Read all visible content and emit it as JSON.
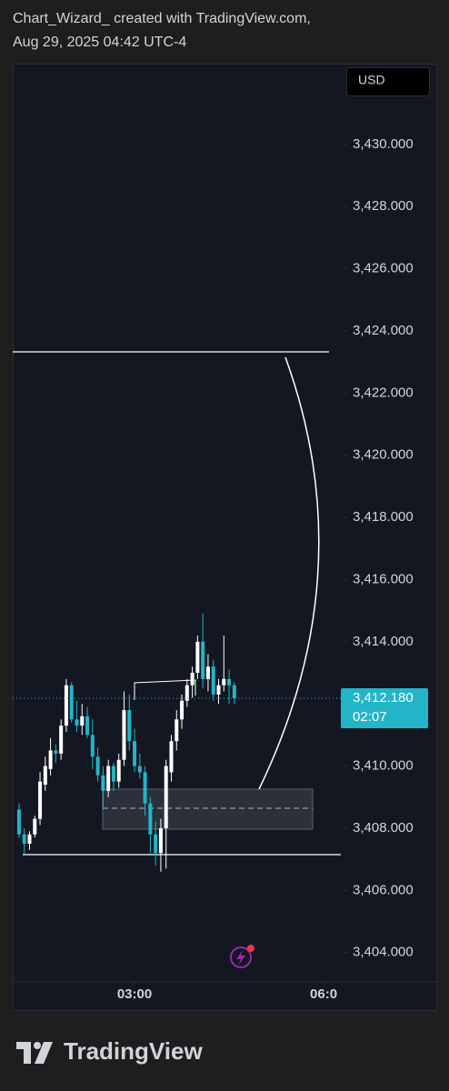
{
  "header": {
    "line1": "Chart_Wizard_ created with TradingView.com,",
    "line2": "Aug 29, 2025 04:42 UTC-4"
  },
  "footer": {
    "brand": "TradingView"
  },
  "chart_data": {
    "type": "candlestick",
    "currency": "USD",
    "x": [
      70,
      75,
      80,
      85,
      90,
      95,
      100,
      105,
      110,
      115,
      120,
      125,
      130,
      135,
      140,
      145,
      150,
      155,
      160,
      165,
      170,
      175,
      180,
      185,
      190,
      195,
      200,
      205,
      210,
      215,
      220,
      225,
      230,
      235,
      240,
      245,
      250,
      255,
      260,
      265,
      270,
      275
    ],
    "open": [
      3408.6,
      3407.8,
      3407.5,
      3407.8,
      3408.3,
      3409.4,
      3409.9,
      3410.5,
      3410.4,
      3411.3,
      3412.6,
      3411.5,
      3411.3,
      3411.6,
      3411.0,
      3410.3,
      3409.7,
      3409.2,
      3410.0,
      3409.5,
      3410.2,
      3411.8,
      3410.8,
      3410.0,
      3409.8,
      3408.8,
      3407.8,
      3407.2,
      3408.0,
      3409.8,
      3410.8,
      3411.5,
      3412.1,
      3412.6,
      3413.0,
      3414.0,
      3412.8,
      3413.2,
      3412.3,
      3412.6,
      3412.8,
      3412.6
    ],
    "high": [
      3408.8,
      3408.0,
      3407.9,
      3408.4,
      3409.8,
      3410.3,
      3410.9,
      3410.7,
      3411.5,
      3412.8,
      3412.7,
      3412.1,
      3412.0,
      3411.9,
      3411.5,
      3410.6,
      3410.0,
      3410.2,
      3410.1,
      3410.4,
      3412.4,
      3412.3,
      3411.2,
      3410.4,
      3410.0,
      3409.0,
      3408.2,
      3408.3,
      3410.2,
      3411.0,
      3411.8,
      3412.3,
      3412.8,
      3413.2,
      3414.2,
      3414.9,
      3413.6,
      3413.4,
      3412.8,
      3414.2,
      3413.1,
      3412.7
    ],
    "low": [
      3407.7,
      3407.15,
      3407.3,
      3407.7,
      3408.1,
      3409.2,
      3409.7,
      3410.1,
      3410.2,
      3411.1,
      3411.4,
      3411.1,
      3411.0,
      3410.9,
      3409.9,
      3409.5,
      3408.6,
      3409.0,
      3409.2,
      3409.3,
      3410.0,
      3410.5,
      3409.8,
      3409.6,
      3408.4,
      3407.2,
      3406.8,
      3406.6,
      3406.7,
      3409.5,
      3410.5,
      3411.2,
      3411.9,
      3412.2,
      3412.8,
      3412.5,
      3412.4,
      3412.1,
      3412.0,
      3412.4,
      3412.0,
      3412.0
    ],
    "close": [
      3407.8,
      3407.5,
      3407.8,
      3408.3,
      3409.5,
      3410.0,
      3410.5,
      3410.4,
      3411.3,
      3412.6,
      3411.5,
      3411.3,
      3411.6,
      3411.0,
      3410.3,
      3409.7,
      3409.2,
      3410.0,
      3409.5,
      3410.2,
      3411.8,
      3410.8,
      3410.0,
      3409.8,
      3408.8,
      3407.8,
      3407.2,
      3408.0,
      3410.0,
      3410.8,
      3411.5,
      3412.1,
      3412.6,
      3413.0,
      3414.0,
      3412.8,
      3413.2,
      3412.3,
      3412.6,
      3412.8,
      3412.6,
      3412.18
    ],
    "up_color": "#ffffff",
    "down_color": "#22b5c8",
    "xlim": [
      64,
      379
    ],
    "xticks": [
      {
        "value": 180,
        "label": "03:00"
      },
      {
        "value": 360,
        "label": "06:0"
      }
    ],
    "ylim": [
      3403.2,
      3432.6
    ],
    "yticks": [
      {
        "value": 3404,
        "label": "3,404.000"
      },
      {
        "value": 3406,
        "label": "3,406.000"
      },
      {
        "value": 3408,
        "label": "3,408.000"
      },
      {
        "value": 3410,
        "label": "3,410.000"
      },
      {
        "value": 3412,
        "label": "3,412.000"
      },
      {
        "value": 3414,
        "label": "3,414.000"
      },
      {
        "value": 3416,
        "label": "3,416.000"
      },
      {
        "value": 3418,
        "label": "3,418.000"
      },
      {
        "value": 3420,
        "label": "3,420.000"
      },
      {
        "value": 3422,
        "label": "3,422.000"
      },
      {
        "value": 3424,
        "label": "3,424.000"
      },
      {
        "value": 3426,
        "label": "3,426.000"
      },
      {
        "value": 3428,
        "label": "3,428.000"
      },
      {
        "value": 3430,
        "label": "3,430.000"
      }
    ],
    "last_price": 3412.18,
    "last_price_label": "3,412.180",
    "countdown": "02:07"
  }
}
